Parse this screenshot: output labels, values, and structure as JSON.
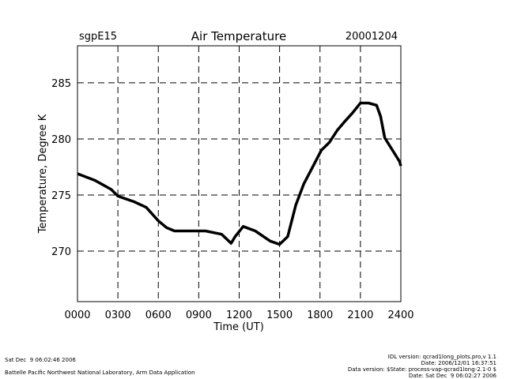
{
  "chart_data": {
    "type": "line",
    "title": "Air Temperature",
    "site": "sgpE15",
    "date": "20001204",
    "xlabel": "Time (UT)",
    "ylabel": "Temperature, Degree K",
    "xlim": [
      0,
      24
    ],
    "ylim": [
      265.5,
      288.3
    ],
    "xticks": [
      0,
      3,
      6,
      9,
      12,
      15,
      18,
      21,
      24
    ],
    "xtick_labels": [
      "0000",
      "0300",
      "0600",
      "0900",
      "1200",
      "1500",
      "1800",
      "2100",
      "2400"
    ],
    "yticks": [
      270,
      275,
      280,
      285
    ],
    "ytick_labels": [
      "270",
      "275",
      "280",
      "285"
    ],
    "grid": "dashed",
    "series": [
      {
        "name": "Air Temperature",
        "x": [
          0,
          1.3,
          2.5,
          3.0,
          4.2,
          5.1,
          6.0,
          6.6,
          7.2,
          8.3,
          9.5,
          10.7,
          11.4,
          11.7,
          12.3,
          13.2,
          14.3,
          15.0,
          15.6,
          16.2,
          16.8,
          17.5,
          18.1,
          18.7,
          19.3,
          19.8,
          20.4,
          21.0,
          21.6,
          22.2,
          22.5,
          22.8,
          23.9,
          24.0
        ],
        "y": [
          276.9,
          276.3,
          275.5,
          274.9,
          274.4,
          273.9,
          272.7,
          272.1,
          271.8,
          271.8,
          271.8,
          271.5,
          270.7,
          271.3,
          272.2,
          271.8,
          270.9,
          270.6,
          271.3,
          274.1,
          276.0,
          277.6,
          279.0,
          279.7,
          280.8,
          281.5,
          282.3,
          283.2,
          283.2,
          283.0,
          282.0,
          280.1,
          278.0,
          277.6
        ]
      }
    ]
  },
  "footer": {
    "left_line1": "Sat Dec  9 06:02:46 2006",
    "left_line2": "Battelle Pacific Northwest National Laboratory, Arm Data Application",
    "right_line1": "IDL version: qcrad1long_plots.pro,v 1.1",
    "right_line2": "Date: 2006/12/01 16:37:51",
    "right_line3": "Data version: $State: process-vap-qcrad1long-2.1-0 $",
    "right_line4": "Date: Sat Dec  9 06:02:27 2006"
  }
}
